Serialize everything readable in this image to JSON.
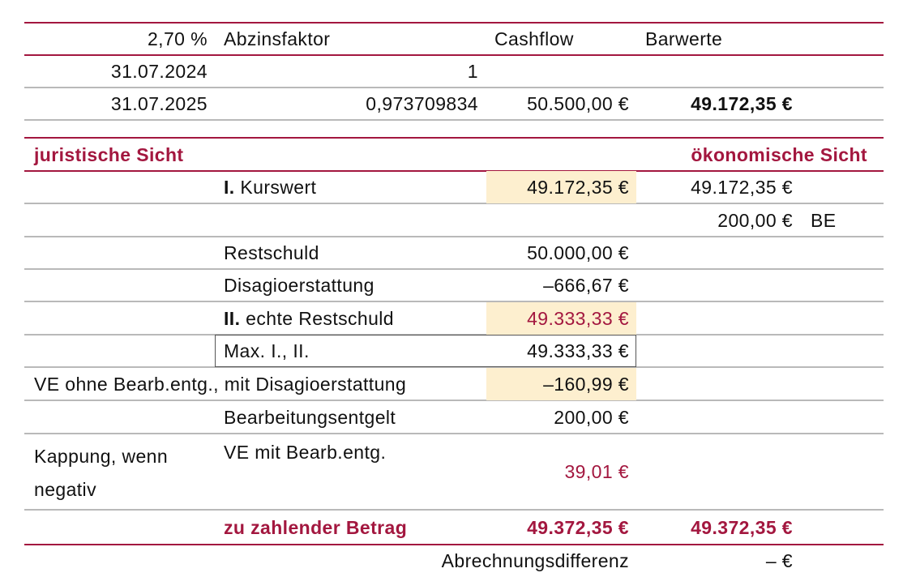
{
  "header": {
    "rate": "2,70 %",
    "col_factor": "Abzinsfaktor",
    "col_cashflow": "Cashflow",
    "col_present": "Barwerte"
  },
  "rows_top": [
    {
      "date": "31.07.2024",
      "factor": "1",
      "cashflow": "",
      "present": ""
    },
    {
      "date": "31.07.2025",
      "factor": "0,973709834",
      "cashflow": "50.500,00 €",
      "present": "49.172,35 €"
    }
  ],
  "sections": {
    "legal": "juristische Sicht",
    "economic": "ökonomische Sicht"
  },
  "calc": {
    "kurswert_num": "I.",
    "kurswert_label": "Kurswert",
    "kurswert_value": "49.172,35 €",
    "kurswert_econ": "49.172,35 €",
    "be_value": "200,00 €",
    "be_label": "BE",
    "restschuld_label": "Restschuld",
    "restschuld_value": "50.000,00 €",
    "disagio_label": "Disagioerstattung",
    "disagio_value": "–666,67 €",
    "echte_num": "II.",
    "echte_label": "echte Restschuld",
    "echte_value": "49.333,33 €",
    "max_label": "Max. I., II.",
    "max_value": "49.333,33 €",
    "ve_ohne_label": "VE ohne Bearb.entg., mit Disagioerstattung",
    "ve_ohne_value": "–160,99 €",
    "bearb_label": "Bearbeitungsentgelt",
    "bearb_value": "200,00 €",
    "kappung_line1": "Kappung, wenn",
    "kappung_line2": "negativ",
    "ve_mit_label": "VE mit Bearb.entg.",
    "ve_mit_value": "39,01 €",
    "zahlen_label": "zu zahlender Betrag",
    "zahlen_value": "49.372,35 €",
    "zahlen_econ": "49.372,35 €",
    "diff_label": "Abrechnungsdifferenz",
    "diff_value": "– €"
  },
  "colors": {
    "accent": "#a3173f",
    "highlight": "#fdefcf"
  }
}
